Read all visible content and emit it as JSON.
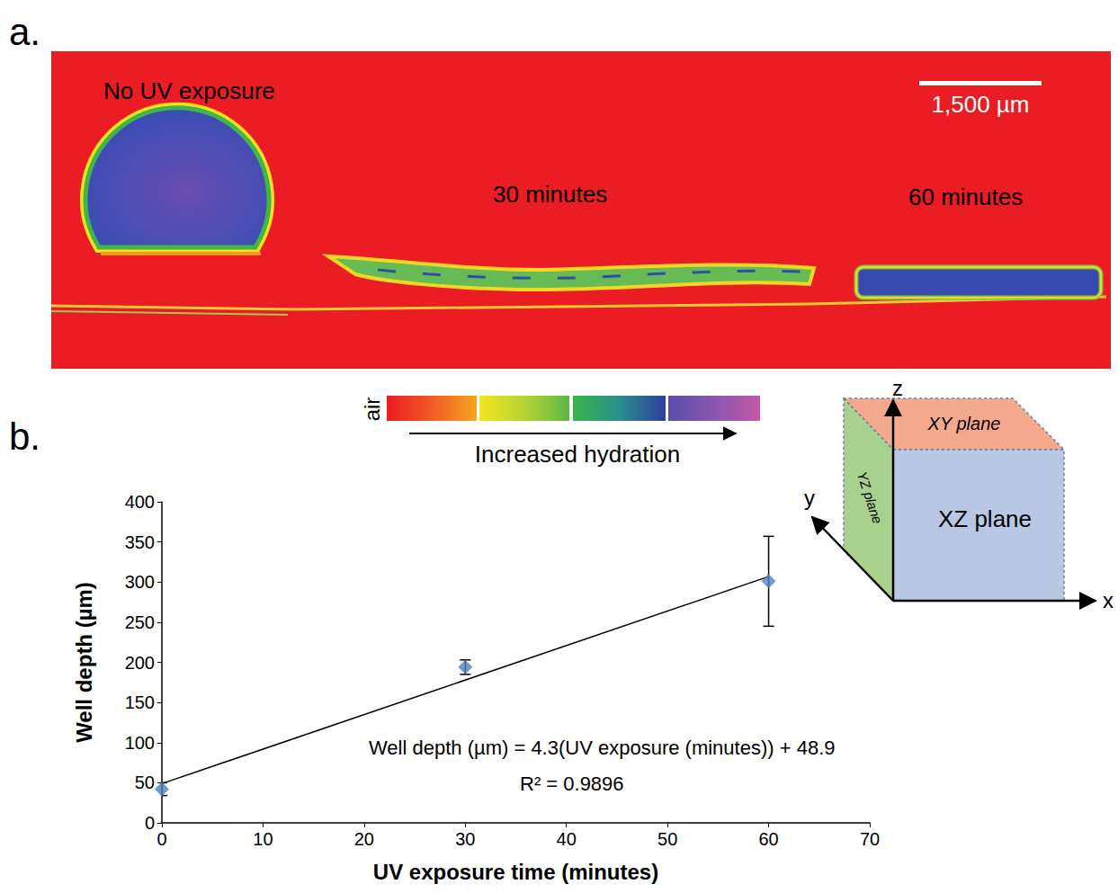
{
  "chart_data": {
    "type": "scatter",
    "x_label": "UV exposure time (minutes)",
    "y_label": "Well depth (µm)",
    "x": [
      0,
      30,
      60
    ],
    "values": [
      42,
      194,
      301
    ],
    "error": [
      8,
      9,
      56
    ],
    "color": "#4f81bd",
    "marker": "diamond",
    "trendline": {
      "x": [
        0,
        60
      ],
      "values": [
        48.9,
        306.9
      ],
      "color": "#000000"
    },
    "annotations": [
      "Well depth (µm) = 4.3(UV exposure (minutes)) + 48.9",
      "R² = 0.9896"
    ],
    "xlim": [
      0,
      70
    ],
    "xticks": [
      0,
      10,
      20,
      30,
      40,
      50,
      60,
      70
    ],
    "ylim": [
      0,
      400
    ],
    "yticks": [
      0,
      50,
      100,
      150,
      200,
      250,
      300,
      350,
      400
    ],
    "grid": false
  },
  "figure": {
    "panel_labels": [
      "a.",
      "b."
    ],
    "image": {
      "labels": [
        "No UV exposure",
        "30 minutes",
        "60 minutes"
      ],
      "scale_bar": "1,500 µm"
    },
    "colorbar": {
      "start_label": "air",
      "caption": "Increased hydration"
    },
    "axes_diagram": {
      "axes": [
        "x",
        "y",
        "z"
      ],
      "planes": [
        "XY plane",
        "YZ plane",
        "XZ plane"
      ]
    }
  }
}
